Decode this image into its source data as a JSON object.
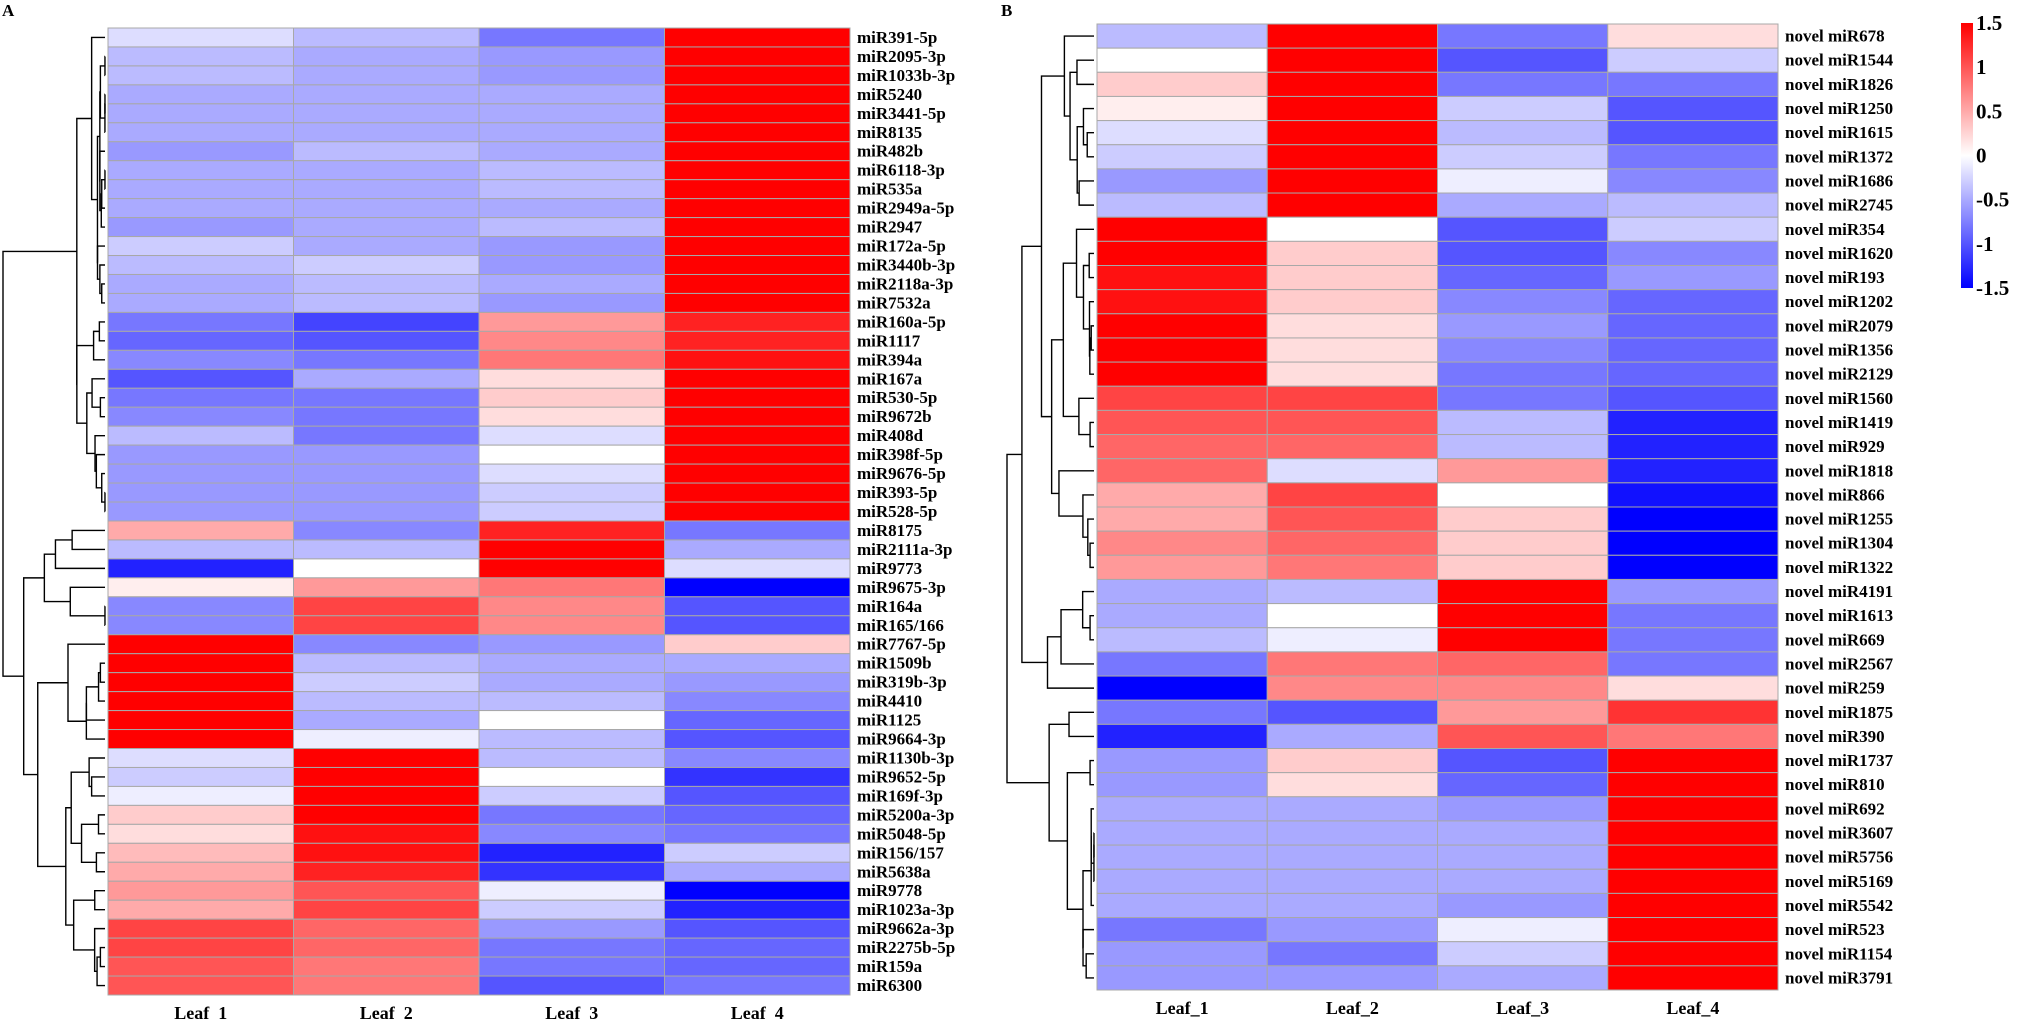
{
  "chart_data": [
    {
      "type": "heatmap",
      "panel": "A",
      "columns": [
        "Leaf_1",
        "Leaf_2",
        "Leaf_3",
        "Leaf_4"
      ],
      "rows": [
        {
          "name": "miR391-5p",
          "values": [
            -0.2,
            -0.4,
            -0.8,
            1.5
          ]
        },
        {
          "name": "miR2095-3p",
          "values": [
            -0.4,
            -0.5,
            -0.6,
            1.5
          ]
        },
        {
          "name": "miR1033b-3p",
          "values": [
            -0.4,
            -0.5,
            -0.6,
            1.5
          ]
        },
        {
          "name": "miR5240",
          "values": [
            -0.5,
            -0.5,
            -0.5,
            1.5
          ]
        },
        {
          "name": "miR3441-5p",
          "values": [
            -0.5,
            -0.5,
            -0.5,
            1.5
          ]
        },
        {
          "name": "miR8135",
          "values": [
            -0.5,
            -0.5,
            -0.5,
            1.5
          ]
        },
        {
          "name": "miR482b",
          "values": [
            -0.6,
            -0.4,
            -0.5,
            1.5
          ]
        },
        {
          "name": "miR6118-3p",
          "values": [
            -0.5,
            -0.5,
            -0.4,
            1.5
          ]
        },
        {
          "name": "miR535a",
          "values": [
            -0.5,
            -0.5,
            -0.4,
            1.5
          ]
        },
        {
          "name": "miR2949a-5p",
          "values": [
            -0.5,
            -0.5,
            -0.5,
            1.5
          ]
        },
        {
          "name": "miR2947",
          "values": [
            -0.6,
            -0.5,
            -0.4,
            1.5
          ]
        },
        {
          "name": "miR172a-5p",
          "values": [
            -0.3,
            -0.5,
            -0.6,
            1.5
          ]
        },
        {
          "name": "miR3440b-3p",
          "values": [
            -0.4,
            -0.3,
            -0.6,
            1.5
          ]
        },
        {
          "name": "miR2118a-3p",
          "values": [
            -0.5,
            -0.4,
            -0.5,
            1.5
          ]
        },
        {
          "name": "miR7532a",
          "values": [
            -0.5,
            -0.4,
            -0.6,
            1.5
          ]
        },
        {
          "name": "miR160a-5p",
          "values": [
            -0.8,
            -1.1,
            0.6,
            1.3
          ]
        },
        {
          "name": "miR1117",
          "values": [
            -0.9,
            -1.0,
            0.7,
            1.3
          ]
        },
        {
          "name": "miR394a",
          "values": [
            -0.7,
            -0.8,
            0.8,
            1.4
          ]
        },
        {
          "name": "miR167a",
          "values": [
            -1.0,
            -0.5,
            0.2,
            1.5
          ]
        },
        {
          "name": "miR530-5p",
          "values": [
            -0.8,
            -0.8,
            0.3,
            1.5
          ]
        },
        {
          "name": "miR9672b",
          "values": [
            -0.7,
            -0.8,
            0.2,
            1.5
          ]
        },
        {
          "name": "miR408d",
          "values": [
            -0.4,
            -0.8,
            -0.2,
            1.5
          ]
        },
        {
          "name": "miR398f-5p",
          "values": [
            -0.6,
            -0.6,
            0.0,
            1.5
          ]
        },
        {
          "name": "miR9676-5p",
          "values": [
            -0.6,
            -0.6,
            -0.2,
            1.5
          ]
        },
        {
          "name": "miR393-5p",
          "values": [
            -0.6,
            -0.6,
            -0.3,
            1.5
          ]
        },
        {
          "name": "miR528-5p",
          "values": [
            -0.6,
            -0.6,
            -0.3,
            1.5
          ]
        },
        {
          "name": "miR8175",
          "values": [
            0.5,
            -0.7,
            1.3,
            -0.8
          ]
        },
        {
          "name": "miR2111a-3p",
          "values": [
            -0.4,
            -0.4,
            1.5,
            -0.5
          ]
        },
        {
          "name": "miR9773",
          "values": [
            -1.3,
            0.0,
            1.5,
            -0.2
          ]
        },
        {
          "name": "miR9675-3p",
          "values": [
            0.1,
            0.6,
            0.8,
            -1.5
          ]
        },
        {
          "name": "miR164a",
          "values": [
            -0.7,
            1.1,
            0.7,
            -1.0
          ]
        },
        {
          "name": "miR165/166",
          "values": [
            -0.7,
            1.1,
            0.7,
            -1.0
          ]
        },
        {
          "name": "miR7767-5p",
          "values": [
            1.5,
            -0.7,
            -0.6,
            0.3
          ]
        },
        {
          "name": "miR1509b",
          "values": [
            1.5,
            -0.4,
            -0.5,
            -0.5
          ]
        },
        {
          "name": "miR319b-3p",
          "values": [
            1.5,
            -0.3,
            -0.5,
            -0.6
          ]
        },
        {
          "name": "miR4410",
          "values": [
            1.5,
            -0.4,
            -0.4,
            -0.7
          ]
        },
        {
          "name": "miR1125",
          "values": [
            1.5,
            -0.5,
            0.0,
            -0.9
          ]
        },
        {
          "name": "miR9664-3p",
          "values": [
            1.5,
            -0.1,
            -0.4,
            -1.0
          ]
        },
        {
          "name": "miR1130b-3p",
          "values": [
            -0.2,
            1.5,
            -0.4,
            -0.7
          ]
        },
        {
          "name": "miR9652-5p",
          "values": [
            -0.3,
            1.5,
            0.0,
            -1.2
          ]
        },
        {
          "name": "miR169f-3p",
          "values": [
            -0.1,
            1.5,
            -0.3,
            -1.0
          ]
        },
        {
          "name": "miR5200a-3p",
          "values": [
            0.3,
            1.5,
            -0.8,
            -0.9
          ]
        },
        {
          "name": "miR5048-5p",
          "values": [
            0.2,
            1.4,
            -0.7,
            -0.8
          ]
        },
        {
          "name": "miR156/157",
          "values": [
            0.4,
            1.4,
            -1.3,
            -0.3
          ]
        },
        {
          "name": "miR5638a",
          "values": [
            0.5,
            1.3,
            -1.2,
            -0.5
          ]
        },
        {
          "name": "miR9778",
          "values": [
            0.6,
            1.0,
            -0.1,
            -1.5
          ]
        },
        {
          "name": "miR1023a-3p",
          "values": [
            0.5,
            1.1,
            -0.3,
            -1.3
          ]
        },
        {
          "name": "miR9662a-3p",
          "values": [
            1.1,
            0.9,
            -0.6,
            -1.0
          ]
        },
        {
          "name": "miR2275b-5p",
          "values": [
            1.1,
            0.9,
            -0.8,
            -0.9
          ]
        },
        {
          "name": "miR159a",
          "values": [
            1.0,
            0.8,
            -0.8,
            -0.9
          ]
        },
        {
          "name": "miR6300",
          "values": [
            1.0,
            0.8,
            -1.0,
            -0.8
          ]
        }
      ]
    },
    {
      "type": "heatmap",
      "panel": "B",
      "columns": [
        "Leaf_1",
        "Leaf_2",
        "Leaf_3",
        "Leaf_4"
      ],
      "rows": [
        {
          "name": "novel miR678",
          "values": [
            -0.4,
            1.5,
            -0.8,
            0.2
          ]
        },
        {
          "name": "novel miR1544",
          "values": [
            0.0,
            1.5,
            -1.0,
            -0.3
          ]
        },
        {
          "name": "novel miR1826",
          "values": [
            0.3,
            1.5,
            -0.8,
            -0.8
          ]
        },
        {
          "name": "novel miR1250",
          "values": [
            0.1,
            1.5,
            -0.3,
            -1.0
          ]
        },
        {
          "name": "novel miR1615",
          "values": [
            -0.2,
            1.5,
            -0.4,
            -1.0
          ]
        },
        {
          "name": "novel miR1372",
          "values": [
            -0.3,
            1.5,
            -0.3,
            -0.8
          ]
        },
        {
          "name": "novel miR1686",
          "values": [
            -0.6,
            1.5,
            -0.1,
            -0.7
          ]
        },
        {
          "name": "novel miR2745",
          "values": [
            -0.4,
            1.5,
            -0.5,
            -0.4
          ]
        },
        {
          "name": "novel miR354",
          "values": [
            1.5,
            0.0,
            -1.0,
            -0.3
          ]
        },
        {
          "name": "novel miR1620",
          "values": [
            1.5,
            0.3,
            -1.0,
            -0.7
          ]
        },
        {
          "name": "novel miR193",
          "values": [
            1.4,
            0.3,
            -0.9,
            -0.6
          ]
        },
        {
          "name": "novel miR1202",
          "values": [
            1.4,
            0.3,
            -0.7,
            -0.9
          ]
        },
        {
          "name": "novel miR2079",
          "values": [
            1.5,
            0.2,
            -0.6,
            -0.9
          ]
        },
        {
          "name": "novel miR1356",
          "values": [
            1.5,
            0.2,
            -0.7,
            -0.9
          ]
        },
        {
          "name": "novel miR2129",
          "values": [
            1.5,
            0.2,
            -0.8,
            -0.9
          ]
        },
        {
          "name": "novel miR1560",
          "values": [
            1.1,
            1.1,
            -0.8,
            -1.0
          ]
        },
        {
          "name": "novel miR1419",
          "values": [
            1.0,
            1.0,
            -0.4,
            -1.3
          ]
        },
        {
          "name": "novel miR929",
          "values": [
            0.9,
            0.9,
            -0.4,
            -1.3
          ]
        },
        {
          "name": "novel miR1818",
          "values": [
            0.9,
            -0.2,
            0.6,
            -1.3
          ]
        },
        {
          "name": "novel miR866",
          "values": [
            0.5,
            1.1,
            0.0,
            -1.4
          ]
        },
        {
          "name": "novel miR1255",
          "values": [
            0.5,
            1.0,
            0.3,
            -1.5
          ]
        },
        {
          "name": "novel miR1304",
          "values": [
            0.7,
            0.9,
            0.3,
            -1.5
          ]
        },
        {
          "name": "novel miR1322",
          "values": [
            0.6,
            0.8,
            0.3,
            -1.5
          ]
        },
        {
          "name": "novel miR4191",
          "values": [
            -0.5,
            -0.4,
            1.5,
            -0.6
          ]
        },
        {
          "name": "novel miR1613",
          "values": [
            -0.5,
            0.0,
            1.5,
            -0.8
          ]
        },
        {
          "name": "novel miR669",
          "values": [
            -0.4,
            -0.1,
            1.5,
            -0.8
          ]
        },
        {
          "name": "novel miR2567",
          "values": [
            -0.8,
            0.8,
            0.9,
            -0.8
          ]
        },
        {
          "name": "novel miR259",
          "values": [
            -1.5,
            0.7,
            0.7,
            0.2
          ]
        },
        {
          "name": "novel miR1875",
          "values": [
            -0.8,
            -1.0,
            0.6,
            1.2
          ]
        },
        {
          "name": "novel miR390",
          "values": [
            -1.3,
            -0.5,
            1.0,
            0.8
          ]
        },
        {
          "name": "novel miR1737",
          "values": [
            -0.6,
            0.3,
            -1.0,
            1.5
          ]
        },
        {
          "name": "novel miR810",
          "values": [
            -0.6,
            0.2,
            -0.9,
            1.5
          ]
        },
        {
          "name": "novel miR692",
          "values": [
            -0.5,
            -0.5,
            -0.6,
            1.5
          ]
        },
        {
          "name": "novel miR3607",
          "values": [
            -0.5,
            -0.5,
            -0.5,
            1.5
          ]
        },
        {
          "name": "novel miR5756",
          "values": [
            -0.5,
            -0.5,
            -0.5,
            1.5
          ]
        },
        {
          "name": "novel miR5169",
          "values": [
            -0.5,
            -0.5,
            -0.5,
            1.5
          ]
        },
        {
          "name": "novel miR5542",
          "values": [
            -0.5,
            -0.5,
            -0.6,
            1.5
          ]
        },
        {
          "name": "novel miR523",
          "values": [
            -0.8,
            -0.6,
            -0.1,
            1.5
          ]
        },
        {
          "name": "novel miR1154",
          "values": [
            -0.6,
            -0.8,
            -0.3,
            1.5
          ]
        },
        {
          "name": "novel miR3791",
          "values": [
            -0.6,
            -0.6,
            -0.5,
            1.5
          ]
        }
      ],
      "colorbar": {
        "range": [
          -1.5,
          1.5
        ],
        "ticks": [
          1.5,
          1,
          0.5,
          0,
          -0.5,
          -1,
          -1.5
        ],
        "tick_labels": [
          "1.5",
          "1",
          "0.5",
          "0",
          "-0.5",
          "-1",
          "-1.5"
        ],
        "colors": {
          "low": "#0000ff",
          "mid": "#ffffff",
          "high": "#ff0000"
        }
      }
    }
  ],
  "figure": {
    "panel_a_label": "A",
    "panel_b_label": "B"
  }
}
